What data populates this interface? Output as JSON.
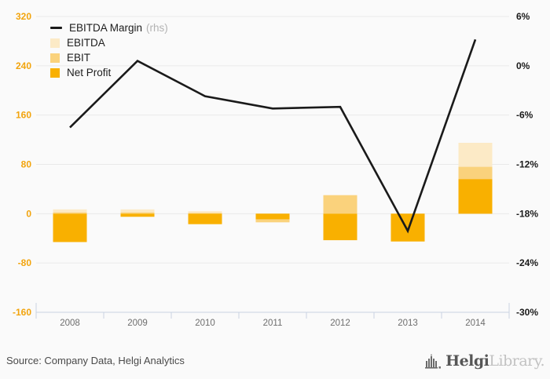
{
  "chart_data": {
    "type": "bar+line combo",
    "categories": [
      "2008",
      "2009",
      "2010",
      "2011",
      "2012",
      "2013",
      "2014"
    ],
    "bar_series": [
      {
        "name": "EBITDA",
        "color": "#FCEAC6",
        "values": [
          7,
          7,
          4,
          -5,
          30,
          -45,
          115
        ]
      },
      {
        "name": "EBIT",
        "color": "#FAD27C",
        "values": [
          2,
          2,
          1,
          -14,
          30,
          -45,
          76
        ]
      },
      {
        "name": "Net Profit",
        "color": "#F9B000",
        "values": [
          -46,
          -5,
          -17,
          -9,
          -43,
          -45,
          56
        ]
      }
    ],
    "line_series": {
      "name": "EBITDA Margin",
      "axis": "right",
      "color": "#1a1a1a",
      "values": [
        -7.5,
        0.6,
        -3.7,
        -5.2,
        -5.0,
        -20.1,
        3.2
      ]
    },
    "left_axis": {
      "min": -160,
      "max": 320,
      "tick_labels": [
        "320",
        "240",
        "160",
        "80",
        "0",
        "-80",
        "-160"
      ],
      "label_color": "#F2A40D"
    },
    "right_axis": {
      "min": -30,
      "max": 6,
      "tick_labels": [
        "6%",
        "0%",
        "-6%",
        "-12%",
        "-18%",
        "-24%",
        "-30%"
      ],
      "label_color": "#1a1a1a"
    },
    "grid_on": true,
    "grid_color": "#e9e9e9",
    "axis_line_color": "#c9d3e2",
    "category_label_color": "#6e6e6e",
    "legend_position": "top-left-inside",
    "background": "#fafafa"
  },
  "legend": {
    "items": [
      {
        "label": "EBITDA Margin",
        "note": "(rhs)",
        "swatch": "line",
        "color": "#1a1a1a"
      },
      {
        "label": "EBITDA",
        "note": "",
        "swatch": "square",
        "color": "#FCEAC6"
      },
      {
        "label": "EBIT",
        "note": "",
        "swatch": "square",
        "color": "#FAD27C"
      },
      {
        "label": "Net Profit",
        "note": "",
        "swatch": "square",
        "color": "#F9B000"
      }
    ]
  },
  "footer": {
    "source": "Source: Company Data, Helgi Analytics",
    "logo": {
      "bold": "Helgi",
      "light": "Library."
    }
  }
}
